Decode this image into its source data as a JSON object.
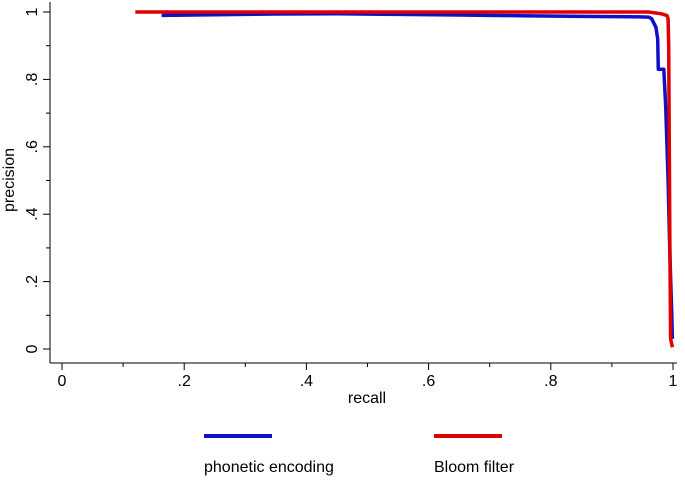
{
  "chart_data": {
    "type": "line",
    "title": "",
    "xlabel": "recall",
    "ylabel": "precision",
    "xlim": [
      0,
      1
    ],
    "ylim": [
      0,
      1
    ],
    "x_ticks": [
      {
        "value": 0,
        "label": "0"
      },
      {
        "value": 0.2,
        "label": ".2"
      },
      {
        "value": 0.4,
        "label": ".4"
      },
      {
        "value": 0.6,
        "label": ".6"
      },
      {
        "value": 0.8,
        "label": ".8"
      },
      {
        "value": 1,
        "label": "1"
      }
    ],
    "y_ticks": [
      {
        "value": 0,
        "label": "0"
      },
      {
        "value": 0.2,
        "label": ".2"
      },
      {
        "value": 0.4,
        "label": ".4"
      },
      {
        "value": 0.6,
        "label": ".6"
      },
      {
        "value": 0.8,
        "label": ".8"
      },
      {
        "value": 1,
        "label": "1"
      }
    ],
    "grid": false,
    "legend_position": "bottom",
    "series": [
      {
        "name": "phonetic encoding",
        "color": "#1010c8",
        "points": [
          [
            0.163,
            0.99
          ],
          [
            0.25,
            0.992
          ],
          [
            0.35,
            0.994
          ],
          [
            0.45,
            0.995
          ],
          [
            0.55,
            0.993
          ],
          [
            0.65,
            0.991
          ],
          [
            0.75,
            0.989
          ],
          [
            0.85,
            0.987
          ],
          [
            0.93,
            0.986
          ],
          [
            0.96,
            0.985
          ],
          [
            0.965,
            0.98
          ],
          [
            0.972,
            0.955
          ],
          [
            0.975,
            0.92
          ],
          [
            0.976,
            0.83
          ],
          [
            0.985,
            0.83
          ],
          [
            0.988,
            0.72
          ],
          [
            0.992,
            0.5
          ],
          [
            0.995,
            0.28
          ],
          [
            0.998,
            0.1
          ],
          [
            0.999,
            0.03
          ]
        ]
      },
      {
        "name": "Bloom filter",
        "color": "#e00000",
        "points": [
          [
            0.12,
            1.0
          ],
          [
            0.3,
            1.0
          ],
          [
            0.5,
            1.0
          ],
          [
            0.7,
            1.0
          ],
          [
            0.9,
            1.0
          ],
          [
            0.96,
            1.0
          ],
          [
            0.98,
            0.995
          ],
          [
            0.99,
            0.99
          ],
          [
            0.992,
            0.98
          ],
          [
            0.993,
            0.9
          ],
          [
            0.994,
            0.6
          ],
          [
            0.995,
            0.3
          ],
          [
            0.996,
            0.03
          ],
          [
            0.999,
            0.005
          ]
        ]
      }
    ]
  }
}
